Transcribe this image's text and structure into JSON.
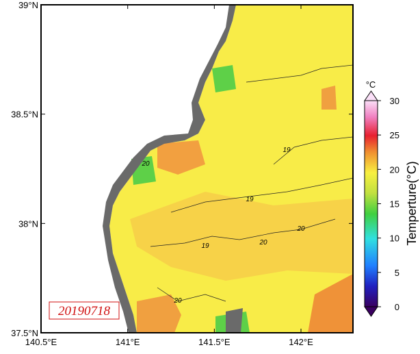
{
  "map": {
    "lon_range": [
      140.5,
      142.3
    ],
    "lat_range": [
      37.5,
      39
    ],
    "lon_ticks": [
      {
        "value": 140.5,
        "label": "140.5°E"
      },
      {
        "value": 141,
        "label": "141°E"
      },
      {
        "value": 141.5,
        "label": "141.5°E"
      },
      {
        "value": 142,
        "label": "142°E"
      }
    ],
    "lat_ticks": [
      {
        "value": 37.5,
        "label": "37.5°N"
      },
      {
        "value": 38,
        "label": "38°N"
      },
      {
        "value": 38.5,
        "label": "38.5°N"
      },
      {
        "value": 39,
        "label": "39°N"
      }
    ],
    "date": "20190718",
    "contour_labels": [
      19,
      19,
      19,
      20,
      20,
      20,
      20
    ],
    "colorbar": {
      "range": [
        0,
        30
      ],
      "ticks": [
        0,
        5,
        10,
        15,
        20,
        25,
        30
      ],
      "unit": "°C",
      "label": "Temperture(°C)"
    }
  }
}
